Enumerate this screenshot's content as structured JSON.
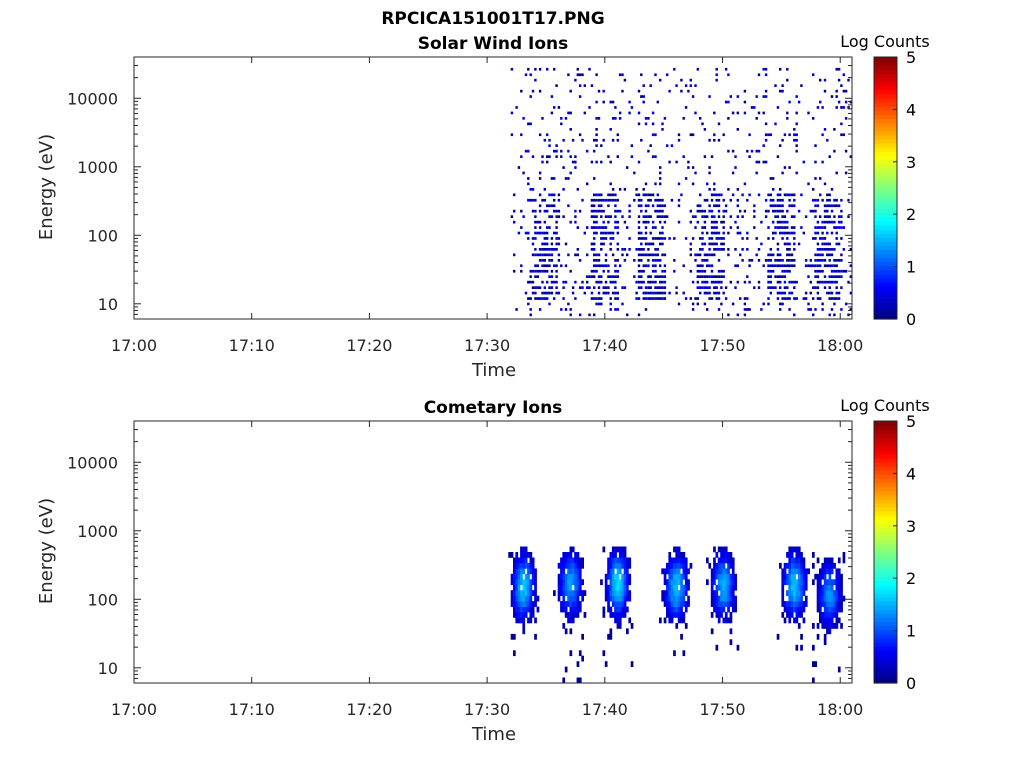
{
  "figure": {
    "title": "RPCICA151001T17.PNG"
  },
  "colorbar": {
    "label": "Log Counts",
    "range": [
      0,
      5
    ],
    "ticks": [
      "0",
      "1",
      "2",
      "3",
      "4",
      "5"
    ],
    "colormap": "jet"
  },
  "chart_data": [
    {
      "type": "heatmap",
      "title": "Solar Wind Ions",
      "xlabel": "Time",
      "ylabel": "Energy (eV)",
      "y_scale": "log",
      "ylim": [
        6,
        40000
      ],
      "xlim": [
        "17:00",
        "18:01"
      ],
      "x_ticks": [
        "17:00",
        "17:10",
        "17:20",
        "17:30",
        "17:40",
        "17:50",
        "18:00"
      ],
      "y_ticks": [
        "10",
        "100",
        "1000",
        "10000"
      ],
      "colorbar_label": "Log Counts",
      "z_range": [
        0,
        5
      ],
      "data_start": "17:32",
      "data_end": "18:01",
      "intensity": "sparse counts, log counts mostly near 0-0.5 across 10-30000 eV after 17:32",
      "enhanced_bursts": [
        "17:35",
        "17:40",
        "17:44",
        "17:49",
        "17:55",
        "17:59"
      ],
      "burst_energy_range_eV": [
        10,
        400
      ]
    },
    {
      "type": "heatmap",
      "title": "Cometary Ions",
      "xlabel": "Time",
      "ylabel": "Energy (eV)",
      "y_scale": "log",
      "ylim": [
        6,
        40000
      ],
      "xlim": [
        "17:00",
        "18:01"
      ],
      "x_ticks": [
        "17:00",
        "17:10",
        "17:20",
        "17:30",
        "17:40",
        "17:50",
        "18:00"
      ],
      "y_ticks": [
        "10",
        "100",
        "1000",
        "10000"
      ],
      "colorbar_label": "Log Counts",
      "z_range": [
        0,
        5
      ],
      "data_start": "17:33",
      "data_end": "18:01",
      "intensity": "periodic bursts, peak log counts about 1.5-1.8 near 100-200 eV",
      "bursts": [
        {
          "center": "17:33",
          "peak_energy_eV": 150,
          "peak_log_counts": 1.6
        },
        {
          "center": "17:37",
          "peak_energy_eV": 170,
          "peak_log_counts": 1.4
        },
        {
          "center": "17:41",
          "peak_energy_eV": 170,
          "peak_log_counts": 1.7
        },
        {
          "center": "17:46",
          "peak_energy_eV": 150,
          "peak_log_counts": 1.6
        },
        {
          "center": "17:50",
          "peak_energy_eV": 160,
          "peak_log_counts": 1.5
        },
        {
          "center": "17:56",
          "peak_energy_eV": 160,
          "peak_log_counts": 1.6
        },
        {
          "center": "17:59",
          "peak_energy_eV": 120,
          "peak_log_counts": 1.3
        }
      ],
      "burst_energy_range_eV": [
        6,
        600
      ]
    }
  ]
}
